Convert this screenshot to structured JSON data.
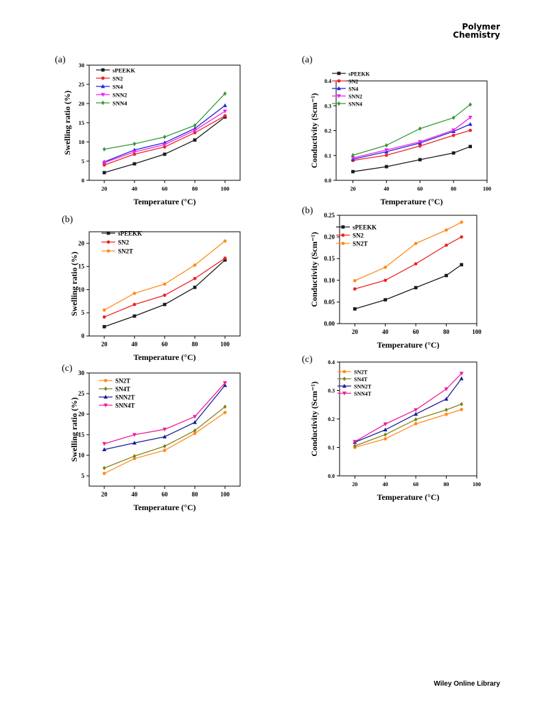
{
  "header": {
    "journal_line1": "Polymer",
    "journal_line2": "Chemistry"
  },
  "footer": {
    "text": "Wiley Online Library"
  },
  "chart_data": [
    {
      "type": "line",
      "panel": "(a)",
      "xlabel": "Temperature (°C)",
      "ylabel": "Swelling ratio (%)",
      "xlim": [
        10,
        110
      ],
      "ylim": [
        0,
        30
      ],
      "xticks": [
        20,
        40,
        60,
        80,
        100
      ],
      "yticks": [
        0,
        5,
        10,
        15,
        20,
        25,
        30
      ],
      "legend": "top-left",
      "grid": false,
      "series": [
        {
          "name": "sPEEKK",
          "color": "#1a1a1a",
          "marker": "square",
          "x": [
            20,
            40,
            60,
            80,
            100
          ],
          "y": [
            2.0,
            4.3,
            6.8,
            10.5,
            16.5
          ]
        },
        {
          "name": "SN2",
          "color": "#ee2222",
          "marker": "circle",
          "x": [
            20,
            40,
            60,
            80,
            100
          ],
          "y": [
            4.0,
            6.8,
            8.7,
            12.4,
            16.8
          ]
        },
        {
          "name": "SN4",
          "color": "#2222dd",
          "marker": "triangle",
          "x": [
            20,
            40,
            60,
            80,
            100
          ],
          "y": [
            4.8,
            7.9,
            9.8,
            13.5,
            19.5
          ]
        },
        {
          "name": "SNN2",
          "color": "#ee22ee",
          "marker": "triangle-down",
          "x": [
            20,
            40,
            60,
            80,
            100
          ],
          "y": [
            4.6,
            7.4,
            9.3,
            13.0,
            18.0
          ]
        },
        {
          "name": "SNN4",
          "color": "#339933",
          "marker": "diamond",
          "x": [
            20,
            40,
            60,
            80,
            100
          ],
          "y": [
            8.1,
            9.5,
            11.3,
            14.3,
            22.6
          ]
        }
      ]
    },
    {
      "type": "line",
      "panel": "(a)",
      "xlabel": "Temperature (°C)",
      "ylabel": "Conductivity (Scm⁻¹)",
      "xlim": [
        10,
        100
      ],
      "ylim": [
        0,
        0.4
      ],
      "xticks": [
        20,
        40,
        60,
        80,
        100
      ],
      "yticks": [
        0.0,
        0.1,
        0.2,
        0.3,
        0.4
      ],
      "yprec": 1,
      "legend": "top-left",
      "grid": false,
      "series": [
        {
          "name": "sPEEKK",
          "color": "#1a1a1a",
          "marker": "square",
          "x": [
            20,
            40,
            60,
            80,
            90
          ],
          "y": [
            0.035,
            0.055,
            0.083,
            0.11,
            0.136
          ]
        },
        {
          "name": "SN2",
          "color": "#ee2222",
          "marker": "circle",
          "x": [
            20,
            40,
            60,
            80,
            90
          ],
          "y": [
            0.08,
            0.101,
            0.138,
            0.181,
            0.201
          ]
        },
        {
          "name": "SN4",
          "color": "#2222dd",
          "marker": "triangle",
          "x": [
            20,
            40,
            60,
            80,
            90
          ],
          "y": [
            0.085,
            0.115,
            0.15,
            0.197,
            0.226
          ]
        },
        {
          "name": "SNN2",
          "color": "#ee22ee",
          "marker": "triangle-down",
          "x": [
            20,
            40,
            60,
            80,
            90
          ],
          "y": [
            0.09,
            0.122,
            0.155,
            0.202,
            0.253
          ]
        },
        {
          "name": "SNN4",
          "color": "#339933",
          "marker": "diamond",
          "x": [
            20,
            40,
            60,
            80,
            90
          ],
          "y": [
            0.101,
            0.141,
            0.208,
            0.252,
            0.305
          ]
        }
      ]
    },
    {
      "type": "line",
      "panel": "(b)",
      "xlabel": "Temperature (°C)",
      "ylabel": "Swelling ratio (%)",
      "xlim": [
        10,
        110
      ],
      "ylim": [
        0,
        22.5
      ],
      "xticks": [
        20,
        40,
        60,
        80,
        100
      ],
      "yticks": [
        0,
        5,
        10,
        15,
        20
      ],
      "legend": "top-left",
      "grid": false,
      "series": [
        {
          "name": "sPEEKK",
          "color": "#1a1a1a",
          "marker": "square",
          "x": [
            20,
            40,
            60,
            80,
            100
          ],
          "y": [
            2.0,
            4.3,
            6.8,
            10.5,
            16.4
          ]
        },
        {
          "name": "SN2",
          "color": "#ee2222",
          "marker": "circle",
          "x": [
            20,
            40,
            60,
            80,
            100
          ],
          "y": [
            4.1,
            6.8,
            8.8,
            12.4,
            16.8
          ]
        },
        {
          "name": "SN2T",
          "color": "#ff8c1a",
          "marker": "circle",
          "x": [
            20,
            40,
            60,
            80,
            100
          ],
          "y": [
            5.6,
            9.2,
            11.2,
            15.3,
            20.5
          ]
        }
      ]
    },
    {
      "type": "line",
      "panel": "(b)",
      "xlabel": "Temperature (°C)",
      "ylabel": "Conductivity (Scm⁻¹)",
      "xlim": [
        10,
        100
      ],
      "ylim": [
        0,
        0.25
      ],
      "xticks": [
        20,
        40,
        60,
        80,
        100
      ],
      "yticks": [
        0.0,
        0.05,
        0.1,
        0.15,
        0.2,
        0.25
      ],
      "yprec": 2,
      "legend": "top-left",
      "grid": false,
      "series": [
        {
          "name": "sPEEKK",
          "color": "#1a1a1a",
          "marker": "square",
          "x": [
            20,
            40,
            60,
            80,
            90
          ],
          "y": [
            0.034,
            0.055,
            0.083,
            0.111,
            0.136
          ]
        },
        {
          "name": "SN2",
          "color": "#ee2222",
          "marker": "circle",
          "x": [
            20,
            40,
            60,
            80,
            90
          ],
          "y": [
            0.08,
            0.1,
            0.138,
            0.181,
            0.2
          ]
        },
        {
          "name": "SN2T",
          "color": "#ff8c1a",
          "marker": "circle",
          "x": [
            20,
            40,
            60,
            80,
            90
          ],
          "y": [
            0.099,
            0.13,
            0.185,
            0.216,
            0.234
          ]
        }
      ]
    },
    {
      "type": "line",
      "panel": "(c)",
      "xlabel": "Temperature (°C)",
      "ylabel": "Swelling ratio (%)",
      "xlim": [
        10,
        110
      ],
      "ylim": [
        2.5,
        30
      ],
      "xticks": [
        20,
        40,
        60,
        80,
        100
      ],
      "yticks": [
        5,
        10,
        15,
        20,
        25,
        30
      ],
      "legend": "top-left",
      "grid": false,
      "series": [
        {
          "name": "SN2T",
          "color": "#ff8c1a",
          "marker": "circle",
          "x": [
            20,
            40,
            60,
            80,
            100
          ],
          "y": [
            5.6,
            9.2,
            11.2,
            15.3,
            20.4
          ]
        },
        {
          "name": "SN4T",
          "color": "#808020",
          "marker": "diamond",
          "x": [
            20,
            40,
            60,
            80,
            100
          ],
          "y": [
            6.9,
            9.8,
            12.2,
            16.0,
            21.8
          ]
        },
        {
          "name": "SNN2T",
          "color": "#1a1a99",
          "marker": "triangle",
          "x": [
            20,
            40,
            60,
            80,
            100
          ],
          "y": [
            11.4,
            13.0,
            14.5,
            18.0,
            27.0
          ]
        },
        {
          "name": "SNN4T",
          "color": "#ee1e96",
          "marker": "triangle-down",
          "x": [
            20,
            40,
            60,
            80,
            100
          ],
          "y": [
            12.8,
            15.0,
            16.3,
            19.4,
            27.6
          ]
        }
      ]
    },
    {
      "type": "line",
      "panel": "(c)",
      "xlabel": "Temperature (°C)",
      "ylabel": "Conductivity (Scm⁻¹)",
      "xlim": [
        10,
        100
      ],
      "ylim": [
        0,
        0.4
      ],
      "xticks": [
        20,
        40,
        60,
        80,
        100
      ],
      "yticks": [
        0.0,
        0.1,
        0.2,
        0.3,
        0.4
      ],
      "yprec": 1,
      "legend": "top-left",
      "grid": false,
      "series": [
        {
          "name": "SN2T",
          "color": "#ff8c1a",
          "marker": "circle",
          "x": [
            20,
            40,
            60,
            80,
            90
          ],
          "y": [
            0.1,
            0.13,
            0.183,
            0.216,
            0.233
          ]
        },
        {
          "name": "SN4T",
          "color": "#808020",
          "marker": "diamond",
          "x": [
            20,
            40,
            60,
            80,
            90
          ],
          "y": [
            0.105,
            0.145,
            0.198,
            0.232,
            0.252
          ]
        },
        {
          "name": "SNN2T",
          "color": "#1a1a99",
          "marker": "triangle",
          "x": [
            20,
            40,
            60,
            80,
            90
          ],
          "y": [
            0.118,
            0.162,
            0.217,
            0.27,
            0.342
          ]
        },
        {
          "name": "SNN4T",
          "color": "#ee1e96",
          "marker": "triangle-down",
          "x": [
            20,
            40,
            60,
            80,
            90
          ],
          "y": [
            0.12,
            0.182,
            0.232,
            0.305,
            0.36
          ]
        }
      ]
    }
  ]
}
